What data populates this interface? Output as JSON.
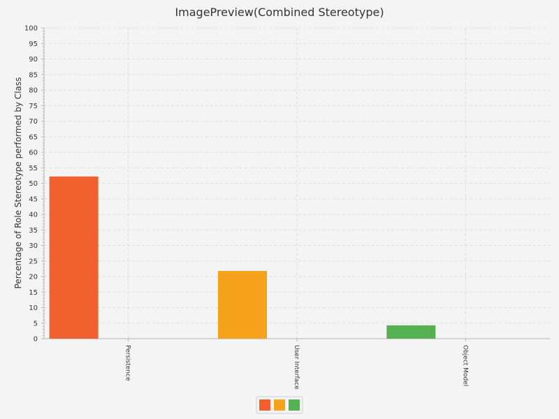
{
  "chart_data": {
    "type": "bar",
    "title": "ImagePreview(Combined Stereotype)",
    "xlabel": "",
    "ylabel": "Percentage of Role Stereotype performed by Class",
    "categories": [
      "Persistence",
      "User Interface",
      "Object Model"
    ],
    "series": [
      {
        "values": [
          52.2,
          21.8,
          4.3
        ]
      }
    ],
    "colors": [
      "#f0612f",
      "#f6a21d",
      "#55b152"
    ],
    "ylim": [
      0,
      100
    ],
    "y_major_step": 5,
    "y_minor_step": 1,
    "grid": true,
    "legend": {
      "placement": "bottom-center",
      "swatches": 3
    }
  }
}
